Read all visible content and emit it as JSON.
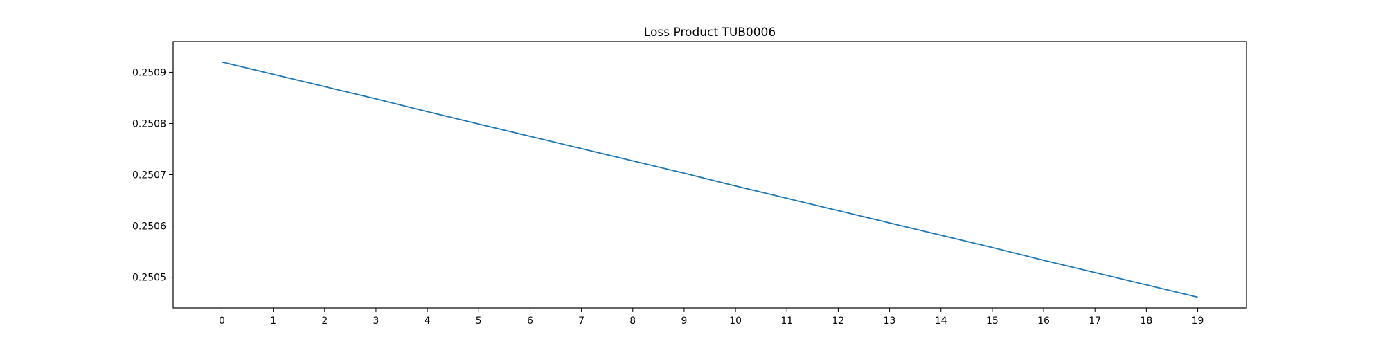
{
  "chart_data": {
    "type": "line",
    "title": "Loss Product TUB0006",
    "xlabel": "",
    "ylabel": "",
    "x": [
      0,
      1,
      2,
      3,
      4,
      5,
      6,
      7,
      8,
      9,
      10,
      11,
      12,
      13,
      14,
      15,
      16,
      17,
      18,
      19
    ],
    "series": [
      {
        "values": [
          0.25092,
          0.250896,
          0.250872,
          0.250848,
          0.250823,
          0.250799,
          0.250775,
          0.250751,
          0.250727,
          0.250703,
          0.250678,
          0.250654,
          0.25063,
          0.250606,
          0.250582,
          0.250558,
          0.250533,
          0.250509,
          0.250485,
          0.250461
        ],
        "color": "#1f77b4"
      }
    ],
    "xticks": [
      "0",
      "1",
      "2",
      "3",
      "4",
      "5",
      "6",
      "7",
      "8",
      "9",
      "10",
      "11",
      "12",
      "13",
      "14",
      "15",
      "16",
      "17",
      "18",
      "19"
    ],
    "yticks": [
      "0.2505",
      "0.2506",
      "0.2507",
      "0.2508",
      "0.2509"
    ],
    "xlim": [
      -0.95,
      19.95
    ],
    "ylim": [
      0.25044,
      0.25096
    ],
    "grid": false,
    "legend": "none"
  }
}
